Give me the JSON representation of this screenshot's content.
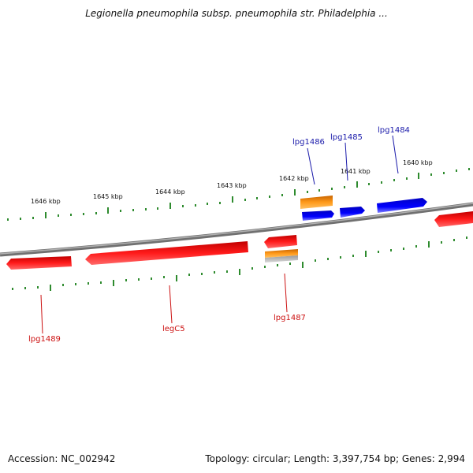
{
  "title": "Legionella pneumophila subsp. pneumophila str. Philadelphia ...",
  "footer": {
    "accession": "Accession: NC_002942",
    "stats": "Topology: circular; Length: 3,397,754 bp; Genes: 2,994"
  },
  "ticks": {
    "t1640": "1640 kbp",
    "t1641": "1641 kbp",
    "t1642": "1642 kbp",
    "t1643": "1643 kbp",
    "t1644": "1644 kbp",
    "t1645": "1645 kbp",
    "t1646": "1646 kbp"
  },
  "genes": {
    "lpg1484": "lpg1484",
    "lpg1485": "lpg1485",
    "lpg1486": "lpg1486",
    "lpg1487": "lpg1487",
    "legC5": "legC5",
    "lpg1489": "lpg1489"
  },
  "colors": {
    "forward_gene": "#0000ee",
    "reverse_gene": "#ee0000",
    "orange_feature": "#ff8c00",
    "backbone": "#808080",
    "ticks": "#2e8b2e",
    "forward_label": "#1a1aaa",
    "reverse_label": "#cc1111"
  }
}
